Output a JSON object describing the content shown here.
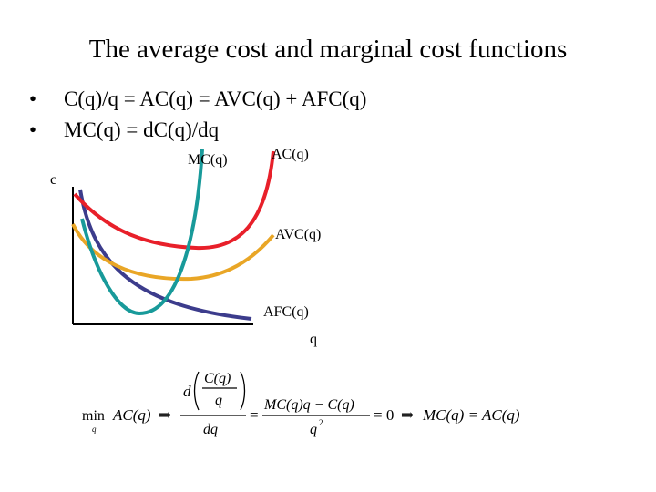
{
  "title": "The average cost and marginal cost functions",
  "bullets": [
    "C(q)/q = AC(q) = AVC(q) + AFC(q)",
    "MC(q) = dC(q)/dq"
  ],
  "diagram": {
    "y_axis_label": "c",
    "x_axis_label": "q",
    "curves": [
      {
        "name": "MC(q)",
        "color": "#189a9a"
      },
      {
        "name": "AC(q)",
        "color": "#e8202a"
      },
      {
        "name": "AVC(q)",
        "color": "#e9a626"
      },
      {
        "name": "AFC(q)",
        "color": "#3c3c8c"
      }
    ]
  },
  "equation": {
    "min": "min",
    "min_sub": "q",
    "lhs": "AC(q)",
    "arrow": "⇒",
    "d": "d",
    "inner_num": "C(q)",
    "inner_den": "q",
    "outer_den": "dq",
    "eq1": "=",
    "frac2_num": "MC(q)q − C(q)",
    "frac2_den": "q",
    "frac2_den_exp": "2",
    "eq2": "= 0",
    "arrow2": "⇒",
    "result": "MC(q) = AC(q)"
  }
}
